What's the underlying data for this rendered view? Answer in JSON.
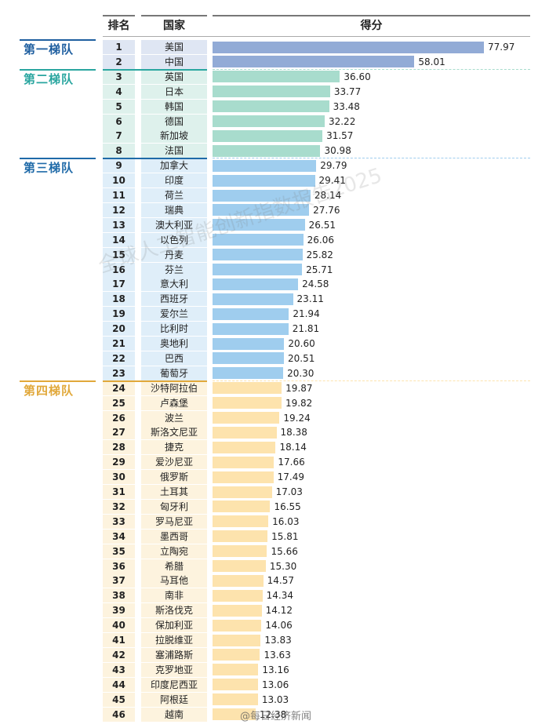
{
  "chart_data": {
    "type": "bar",
    "headers": {
      "rank": "排名",
      "country": "国家",
      "score": "得分"
    },
    "tiers": [
      {
        "name": "第一梯队",
        "from_rank": 1,
        "to_rank": 2,
        "color": "#1f5fa0",
        "bar_color": "#92abd6",
        "col_color": "#dfe6f3"
      },
      {
        "name": "第二梯队",
        "from_rank": 3,
        "to_rank": 8,
        "color": "#2aa6a0",
        "bar_color": "#a8dccd",
        "col_color": "#def1ec"
      },
      {
        "name": "第三梯队",
        "from_rank": 9,
        "to_rank": 23,
        "color": "#1f6aa8",
        "bar_color": "#9fcdee",
        "col_color": "#dfeef9"
      },
      {
        "name": "第四梯队",
        "from_rank": 24,
        "to_rank": 46,
        "color": "#e1a83a",
        "bar_color": "#fde3ad",
        "col_color": "#fdf3de"
      }
    ],
    "ranks": [
      1,
      2,
      3,
      4,
      5,
      6,
      7,
      8,
      9,
      10,
      11,
      12,
      13,
      14,
      15,
      16,
      17,
      18,
      19,
      20,
      21,
      22,
      23,
      24,
      25,
      26,
      27,
      28,
      29,
      30,
      31,
      32,
      33,
      34,
      35,
      36,
      37,
      38,
      39,
      40,
      41,
      42,
      43,
      44,
      45,
      46
    ],
    "categories": [
      "美国",
      "中国",
      "英国",
      "日本",
      "韩国",
      "德国",
      "新加坡",
      "法国",
      "加拿大",
      "印度",
      "荷兰",
      "瑞典",
      "澳大利亚",
      "以色列",
      "丹麦",
      "芬兰",
      "意大利",
      "西班牙",
      "爱尔兰",
      "比利时",
      "奥地利",
      "巴西",
      "葡萄牙",
      "沙特阿拉伯",
      "卢森堡",
      "波兰",
      "斯洛文尼亚",
      "捷克",
      "爱沙尼亚",
      "俄罗斯",
      "土耳其",
      "匈牙利",
      "罗马尼亚",
      "墨西哥",
      "立陶宛",
      "希腊",
      "马耳他",
      "南非",
      "斯洛伐克",
      "保加利亚",
      "拉脱维亚",
      "塞浦路斯",
      "克罗地亚",
      "印度尼西亚",
      "阿根廷",
      "越南"
    ],
    "values": [
      77.97,
      58.01,
      36.6,
      33.77,
      33.48,
      32.22,
      31.57,
      30.98,
      29.79,
      29.41,
      28.14,
      27.76,
      26.51,
      26.06,
      25.82,
      25.71,
      24.58,
      23.11,
      21.94,
      21.81,
      20.6,
      20.51,
      20.3,
      19.87,
      19.82,
      19.24,
      18.38,
      18.14,
      17.66,
      17.49,
      17.03,
      16.55,
      16.03,
      15.81,
      15.66,
      15.3,
      14.57,
      14.34,
      14.12,
      14.06,
      13.83,
      13.63,
      13.16,
      13.06,
      13.03,
      12.38
    ],
    "value_labels": [
      "77.97",
      "58.01",
      "36.60",
      "33.77",
      "33.48",
      "32.22",
      "31.57",
      "30.98",
      "29.79",
      "29.41",
      "28.14",
      "27.76",
      "26.51",
      "26.06",
      "25.82",
      "25.71",
      "24.58",
      "23.11",
      "21.94",
      "21.81",
      "20.60",
      "20.51",
      "20.30",
      "19.87",
      "19.82",
      "19.24",
      "18.38",
      "18.14",
      "17.66",
      "17.49",
      "17.03",
      "16.55",
      "16.03",
      "15.81",
      "15.66",
      "15.30",
      "14.57",
      "14.34",
      "14.12",
      "14.06",
      "13.83",
      "13.63",
      "13.16",
      "13.06",
      "13.03",
      "12.38"
    ],
    "xlim": [
      0,
      80
    ],
    "grid": false,
    "legend": "none"
  },
  "watermark": "全球人工智能创新指数报告2025",
  "source_label": "@每日经济新闻"
}
